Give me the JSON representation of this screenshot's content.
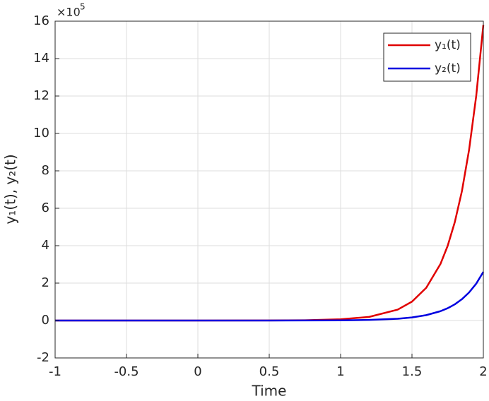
{
  "chart_data": {
    "type": "line",
    "xlabel": "Time",
    "ylabel": "y₁(t), y₂(t)",
    "y_exponent": {
      "base": "×10",
      "power": "5"
    },
    "x": [
      -1,
      -0.5,
      0,
      0.5,
      0.75,
      1,
      1.2,
      1.4,
      1.5,
      1.6,
      1.7,
      1.75,
      1.8,
      1.85,
      1.9,
      1.95,
      2
    ],
    "series": [
      {
        "name": "y₁(t)",
        "color": "#e00000",
        "values": [
          0,
          0,
          0,
          0.004,
          0.016,
          0.065,
          0.194,
          0.583,
          1.01,
          1.75,
          3.03,
          3.99,
          5.26,
          6.92,
          9.12,
          12.0,
          15.8
        ]
      },
      {
        "name": "y₂(t)",
        "color": "#0000e0",
        "values": [
          0,
          0,
          0,
          0.0007,
          0.003,
          0.011,
          0.032,
          0.096,
          0.166,
          0.288,
          0.5,
          0.657,
          0.866,
          1.14,
          1.5,
          1.97,
          2.6
        ]
      }
    ],
    "xlim": [
      -1,
      2
    ],
    "xticks": [
      -1,
      -0.5,
      0,
      0.5,
      1,
      1.5,
      2
    ],
    "ylim": [
      -2,
      16
    ],
    "yticks": [
      -2,
      0,
      2,
      4,
      6,
      8,
      10,
      12,
      14,
      16
    ],
    "grid": true,
    "legend_position": "northeast"
  }
}
